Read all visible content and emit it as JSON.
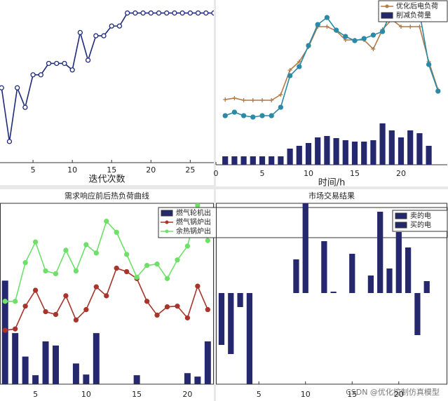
{
  "chart_data": [
    {
      "type": "line",
      "x_label": "迭代次数",
      "x": [
        1,
        2,
        3,
        4,
        5,
        6,
        7,
        8,
        9,
        10,
        11,
        12,
        13,
        14,
        15,
        16,
        17,
        18,
        19,
        20,
        21,
        22,
        23,
        24,
        25,
        26,
        27,
        28
      ],
      "xlim": [
        0.8,
        28
      ],
      "xticks": [
        5,
        10,
        15,
        20,
        25
      ],
      "ylim": [
        0,
        100
      ],
      "series": [
        {
          "name": null,
          "type": "line",
          "color": "#1f2a7a",
          "marker": "circle",
          "values": [
            46,
            13,
            46,
            34,
            54,
            54,
            61,
            61,
            61,
            57,
            80,
            63,
            78,
            78,
            84,
            84,
            92,
            92,
            92,
            92,
            92,
            92,
            92,
            92,
            92,
            92,
            92,
            92
          ]
        }
      ]
    },
    {
      "type": "combo",
      "x_label": "时间/h",
      "legend": "upper right",
      "x": [
        1,
        2,
        3,
        4,
        5,
        6,
        7,
        8,
        9,
        10,
        11,
        12,
        13,
        14,
        15,
        16,
        17,
        18,
        19,
        20,
        21,
        22,
        23,
        24
      ],
      "xlim": [
        0,
        25
      ],
      "xticks": [
        0,
        5,
        10,
        15,
        20
      ],
      "ylim": [
        0,
        235
      ],
      "series": [
        {
          "name": "优化后电负荷",
          "type": "line",
          "color": "#b07a4a",
          "marker": "plus",
          "values": [
            93,
            95,
            92,
            92,
            92,
            92,
            100,
            135,
            147,
            168,
            197,
            197,
            191,
            178,
            178,
            178,
            165,
            193,
            207,
            197,
            197,
            197,
            147,
            107
          ]
        },
        {
          "name": null,
          "type": "line",
          "color": "#2a8aa8",
          "marker": "circle",
          "values": [
            70,
            75,
            70,
            68,
            70,
            70,
            82,
            127,
            140,
            170,
            200,
            210,
            192,
            183,
            177,
            180,
            185,
            190,
            220,
            210,
            210,
            217,
            143,
            105
          ]
        },
        {
          "name": "削减负荷量",
          "type": "bar",
          "color": "#26286e",
          "values": [
            12,
            12,
            12,
            12,
            12,
            12,
            12,
            23,
            27,
            31,
            39,
            41,
            38,
            35,
            33,
            33,
            35,
            59,
            49,
            39,
            49,
            45,
            27,
            null
          ]
        }
      ]
    },
    {
      "type": "combo",
      "title": "需求响应前后热负荷曲线",
      "legend": "upper right",
      "x": [
        2,
        3,
        4,
        5,
        6,
        7,
        8,
        9,
        10,
        11,
        12,
        13,
        14,
        15,
        16,
        17,
        18,
        19,
        20,
        21,
        22
      ],
      "xlim": [
        1.5,
        22.6
      ],
      "xticks": [
        5,
        10,
        15,
        20
      ],
      "ylim": [
        0,
        262
      ],
      "series": [
        {
          "name": "燃气轮机出",
          "type": "bar",
          "color": "#26286e",
          "values": [
            150,
            74,
            40,
            13,
            62,
            56,
            0,
            30,
            14,
            74,
            0,
            0,
            0,
            13,
            0,
            0,
            0,
            0,
            16,
            11,
            62
          ]
        },
        {
          "name": "燃气锅炉出",
          "type": "line",
          "color": "#a8342c",
          "marker": "circle",
          "values": [
            78,
            80,
            113,
            136,
            105,
            101,
            128,
            93,
            108,
            141,
            128,
            168,
            163,
            153,
            120,
            100,
            112,
            113,
            96,
            142,
            108
          ]
        },
        {
          "name": "余热锅炉出",
          "type": "line",
          "color": "#6ee06a",
          "marker": "circle",
          "values": [
            120,
            120,
            176,
            206,
            164,
            160,
            194,
            164,
            202,
            190,
            236,
            220,
            188,
            155,
            172,
            174,
            153,
            180,
            200,
            259,
            208
          ]
        }
      ]
    },
    {
      "type": "bar",
      "title": "市场交易结果",
      "legend": "upper right",
      "x": [
        1,
        2,
        3,
        4,
        5,
        6,
        7,
        8,
        9,
        10,
        11,
        12,
        13,
        14,
        15,
        16,
        17,
        18,
        19,
        20,
        21,
        22,
        23
      ],
      "xlim": [
        0.4,
        25.2
      ],
      "xticks": [
        5,
        10,
        15,
        20
      ],
      "ylim": [
        -130,
        128
      ],
      "series": [
        {
          "name": "卖的电",
          "type": "bar",
          "color": "#26286e",
          "values": [
            null,
            null,
            null,
            null,
            null,
            null,
            null,
            null,
            48,
            128,
            null,
            74,
            2,
            null,
            56,
            null,
            25,
            116,
            35,
            87,
            65,
            null,
            17
          ]
        },
        {
          "name": "买的电",
          "type": "bar",
          "color": "#26286e",
          "values": [
            -74,
            -87,
            -20,
            -130,
            null,
            null,
            null,
            null,
            null,
            null,
            null,
            null,
            null,
            null,
            null,
            null,
            null,
            null,
            null,
            null,
            null,
            -60,
            null
          ]
        }
      ]
    }
  ],
  "watermark": "CSDN @优化控制仿真模型"
}
